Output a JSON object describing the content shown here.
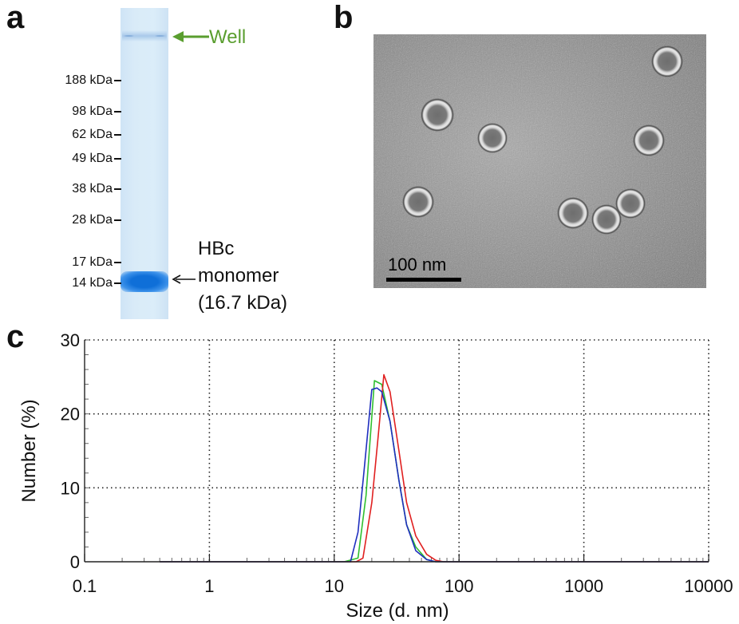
{
  "panels": {
    "a": "a",
    "b": "b",
    "c": "c"
  },
  "gel": {
    "well_label": "Well",
    "well_color": "#5a9e2f",
    "markers": [
      "188 kDa",
      "98 kDa",
      "62 kDa",
      "49 kDa",
      "38 kDa",
      "28 kDa",
      "17 kDa",
      "14 kDa"
    ],
    "band_label_line1": "HBc",
    "band_label_line2": "monomer",
    "band_label_line3": "(16.7 kDa)",
    "band_color": "#1e7fe0"
  },
  "micrograph": {
    "scale_bar_label": "100 nm"
  },
  "chart_data": {
    "type": "line",
    "xlabel": "Size (d. nm)",
    "ylabel": "Number (%)",
    "x_scale": "log",
    "xlim": [
      0.1,
      10000
    ],
    "ylim": [
      0,
      30
    ],
    "x_ticks": [
      "0.1",
      "1",
      "10",
      "100",
      "1000",
      "10000"
    ],
    "y_ticks": [
      "0",
      "10",
      "20",
      "30"
    ],
    "grid": true,
    "series": [
      {
        "color": "#2fbf2f",
        "x": [
          0.4,
          12,
          15.5,
          18,
          21,
          24,
          28,
          33,
          38,
          45,
          55,
          65,
          10000
        ],
        "values": [
          0,
          0,
          0.5,
          9,
          24.5,
          24,
          19,
          11,
          5,
          2,
          0.3,
          0,
          0
        ]
      },
      {
        "color": "#e02020",
        "x": [
          0.4,
          15,
          17,
          20,
          22.5,
          25,
          28,
          33,
          38,
          45,
          55,
          65,
          75,
          10000
        ],
        "values": [
          0,
          0,
          0.5,
          8,
          17,
          25.3,
          23,
          15,
          8,
          3.5,
          1,
          0.2,
          0,
          0
        ]
      },
      {
        "color": "#1f2fbf",
        "x": [
          0.4,
          13.5,
          15.5,
          17.5,
          20,
          22,
          24,
          28,
          33,
          38,
          45,
          55,
          65,
          10000
        ],
        "values": [
          0,
          0,
          4,
          13,
          23.3,
          23.5,
          23,
          19,
          11,
          5,
          1.5,
          0.3,
          0,
          0
        ]
      }
    ]
  }
}
